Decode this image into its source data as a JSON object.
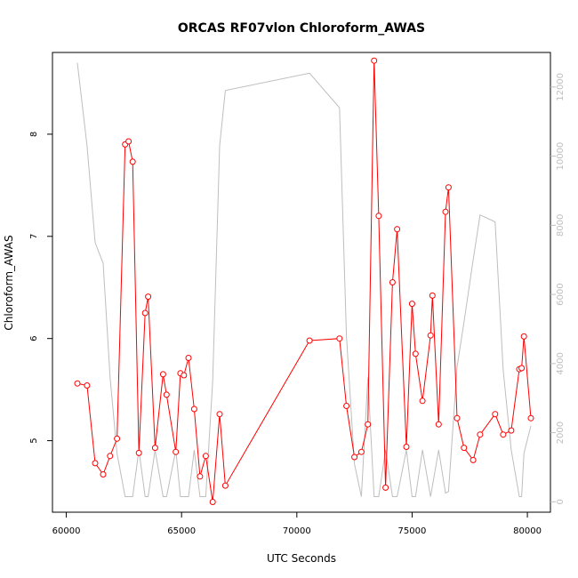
{
  "chart_data": {
    "type": "line",
    "title": "ORCAS RF07vlon Chloroform_AWAS",
    "xlabel": "UTC Seconds",
    "ylabel": "Chloroform_AWAS",
    "xlim": [
      59400,
      81000
    ],
    "ylim": [
      4.3,
      8.8
    ],
    "y2lim": [
      -300,
      13000
    ],
    "x_ticks": [
      60000,
      65000,
      70000,
      75000,
      80000
    ],
    "y_ticks": [
      5,
      6,
      7,
      8
    ],
    "y2_ticks": [
      0,
      2000,
      4000,
      6000,
      8000,
      10000,
      12000
    ],
    "grid": false,
    "legend": "none",
    "colors": {
      "series": "#ff0000",
      "secondary": "#bebebe",
      "axis": "#000000"
    },
    "series": [
      {
        "axis": "left",
        "style": "line+circle",
        "x": [
          60480,
          60900,
          61250,
          61600,
          61900,
          62200,
          62550,
          62700,
          62880,
          63150,
          63420,
          63550,
          63850,
          64200,
          64350,
          64750,
          64950,
          65100,
          65300,
          65550,
          65800,
          66050,
          66350,
          66650,
          66900,
          70550,
          71850,
          72150,
          72500,
          72800,
          73080,
          73350,
          73550,
          73850,
          74150,
          74350,
          74750,
          75000,
          75150,
          75450,
          75800,
          75880,
          76150,
          76450,
          76580,
          76950,
          77250,
          77650,
          77950,
          78600,
          78950,
          79300,
          79650,
          79750,
          79850,
          80150
        ],
        "y": [
          5.56,
          5.54,
          4.78,
          4.67,
          4.85,
          5.02,
          7.9,
          7.93,
          7.73,
          4.88,
          6.25,
          6.41,
          4.93,
          5.65,
          5.45,
          4.89,
          5.66,
          5.64,
          5.81,
          5.31,
          4.65,
          4.85,
          4.4,
          5.26,
          4.56,
          5.98,
          6.0,
          5.34,
          4.84,
          4.89,
          5.16,
          8.72,
          7.2,
          4.54,
          6.55,
          7.07,
          4.94,
          6.34,
          5.85,
          5.39,
          6.03,
          6.42,
          5.16,
          7.24,
          7.48,
          5.22,
          4.93,
          4.81,
          5.06,
          5.26,
          5.06,
          5.1,
          5.7,
          5.71,
          6.02,
          5.22
        ]
      },
      {
        "axis": "right",
        "style": "line",
        "x": [
          60480,
          60900,
          61250,
          61600,
          61900,
          62200,
          62550,
          62880,
          63150,
          63420,
          63550,
          63850,
          64200,
          64350,
          64750,
          64950,
          65300,
          65550,
          65800,
          66050,
          66350,
          66650,
          66900,
          70550,
          71850,
          72150,
          72500,
          72800,
          73080,
          73350,
          73550,
          73850,
          74150,
          74350,
          74750,
          75000,
          75150,
          75450,
          75800,
          76150,
          76450,
          76580,
          76950,
          77250,
          77650,
          77950,
          78600,
          78950,
          79300,
          79650,
          79750,
          79850,
          80150
        ],
        "y": [
          12700,
          10300,
          7500,
          6900,
          3600,
          1400,
          150,
          150,
          1500,
          150,
          150,
          1500,
          150,
          150,
          1500,
          150,
          150,
          1500,
          150,
          150,
          3500,
          10300,
          11900,
          12400,
          11400,
          4800,
          1100,
          150,
          3600,
          150,
          150,
          1500,
          150,
          150,
          1500,
          150,
          150,
          1500,
          150,
          1500,
          250,
          300,
          3900,
          5200,
          7000,
          8300,
          8100,
          3800,
          1500,
          150,
          150,
          1400,
          2200
        ]
      }
    ]
  }
}
